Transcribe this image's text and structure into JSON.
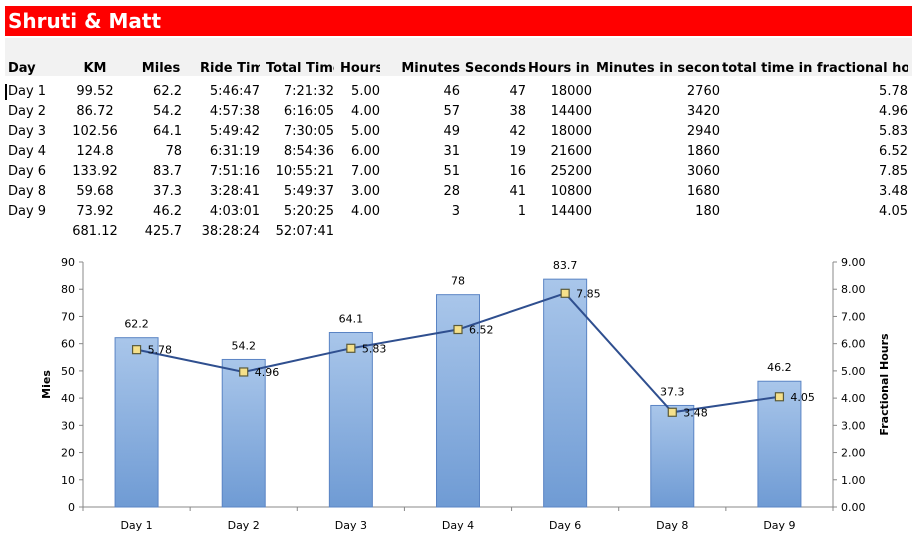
{
  "title": "Shruti & Matt",
  "headers": [
    "Day",
    "KM",
    "Miles",
    "Ride Time",
    "Total Time",
    "Hours",
    "Minutes",
    "Seconds",
    "Hours in s·",
    "Minutes in seconds",
    "total time in fractional hours"
  ],
  "rows": [
    [
      "Day 1",
      "99.52",
      "62.2",
      "5:46:47",
      "7:21:32",
      "5.00",
      "46",
      "47",
      "18000",
      "2760",
      "5.78"
    ],
    [
      "Day 2",
      "86.72",
      "54.2",
      "4:57:38",
      "6:16:05",
      "4.00",
      "57",
      "38",
      "14400",
      "3420",
      "4.96"
    ],
    [
      "Day 3",
      "102.56",
      "64.1",
      "5:49:42",
      "7:30:05",
      "5.00",
      "49",
      "42",
      "18000",
      "2940",
      "5.83"
    ],
    [
      "Day 4",
      "124.8",
      "78",
      "6:31:19",
      "8:54:36",
      "6.00",
      "31",
      "19",
      "21600",
      "1860",
      "6.52"
    ],
    [
      "Day 6",
      "133.92",
      "83.7",
      "7:51:16",
      "10:55:21",
      "7.00",
      "51",
      "16",
      "25200",
      "3060",
      "7.85"
    ],
    [
      "Day 8",
      "59.68",
      "37.3",
      "3:28:41",
      "5:49:37",
      "3.00",
      "28",
      "41",
      "10800",
      "1680",
      "3.48"
    ],
    [
      "Day 9",
      "73.92",
      "46.2",
      "4:03:01",
      "5:20:25",
      "4.00",
      "3",
      "1",
      "14400",
      "180",
      "4.05"
    ]
  ],
  "totals": {
    "km": "681.12",
    "miles": "425.7",
    "ride_time": "38:28:24",
    "total_time": "52:07:41"
  },
  "chart_data": {
    "type": "bar",
    "categories": [
      "Day 1",
      "Day 2",
      "Day 3",
      "Day 4",
      "Day 6",
      "Day 8",
      "Day 9"
    ],
    "series": [
      {
        "name": "Miles",
        "type": "bar",
        "axis": "left",
        "values": [
          62.2,
          54.2,
          64.1,
          78,
          83.7,
          37.3,
          46.2
        ],
        "color": "#8db3e2"
      },
      {
        "name": "total time in fractional hours",
        "type": "line",
        "axis": "right",
        "values": [
          5.78,
          4.96,
          5.83,
          6.52,
          7.85,
          3.48,
          4.05
        ],
        "color": "#2f4f8f"
      }
    ],
    "ylabel": "Mies",
    "y2label": "Fractional Hours",
    "ylim": [
      0,
      90
    ],
    "y2lim": [
      0,
      9
    ],
    "yticks": [
      "0",
      "10",
      "20",
      "30",
      "40",
      "50",
      "60",
      "70",
      "80",
      "90"
    ],
    "y2ticks": [
      "0.00",
      "1.00",
      "2.00",
      "3.00",
      "4.00",
      "5.00",
      "6.00",
      "7.00",
      "8.00",
      "9.00"
    ],
    "bar_labels": [
      "62.2",
      "54.2",
      "64.1",
      "78",
      "83.7",
      "37.3",
      "46.2"
    ],
    "line_labels": [
      "5.78",
      "4.96",
      "5.83",
      "6.52",
      "7.85",
      "3.48",
      "4.05"
    ]
  }
}
